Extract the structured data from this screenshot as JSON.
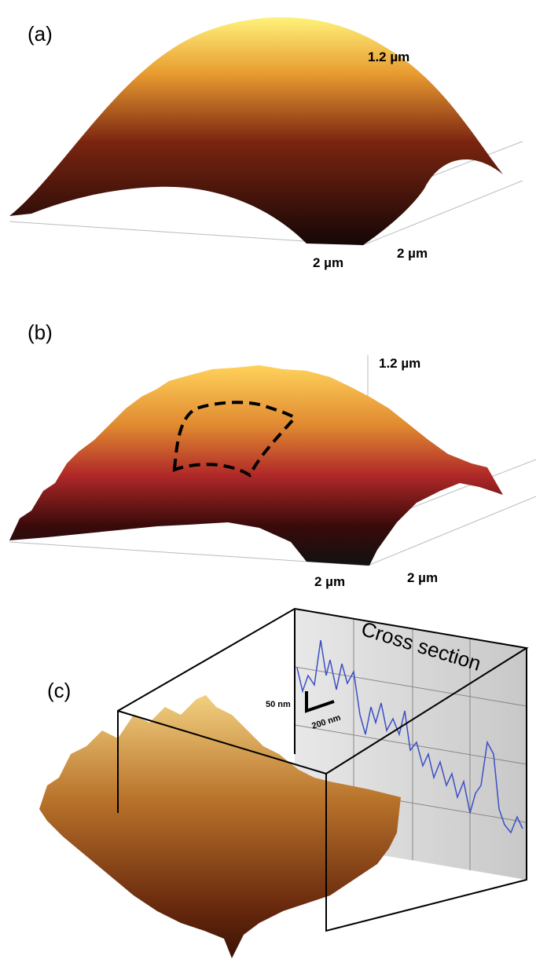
{
  "panels": [
    {
      "label": "(a)",
      "z_label": "1.2 µm",
      "x_label": "2 µm",
      "y_label": "2 µm"
    },
    {
      "label": "(b)",
      "z_label": "1.2 µm",
      "x_label": "2 µm",
      "y_label": "2 µm"
    },
    {
      "label": "(c)",
      "cross_section_title": "Cross section",
      "scale_vertical": "50 nm",
      "scale_horizontal": "200 nm"
    }
  ]
}
